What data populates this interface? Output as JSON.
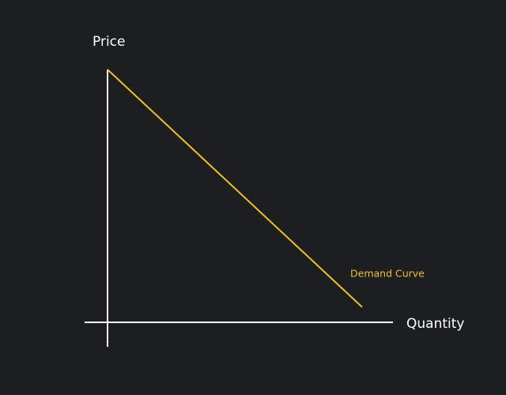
{
  "chart_data": {
    "type": "line",
    "title": "",
    "xlabel": "Quantity",
    "ylabel": "Price",
    "grid": false,
    "axis_ticks": false,
    "series": [
      {
        "name": "Demand Curve",
        "color": "#f0c02a",
        "points": [
          {
            "x": 0,
            "y": 100
          },
          {
            "x": 100,
            "y": 3
          }
        ]
      }
    ],
    "xlim": [
      0,
      100
    ],
    "ylim": [
      0,
      100
    ]
  },
  "colors": {
    "background": "#1d1e20",
    "axis": "#ffffff",
    "accent": "#f0c02a"
  }
}
